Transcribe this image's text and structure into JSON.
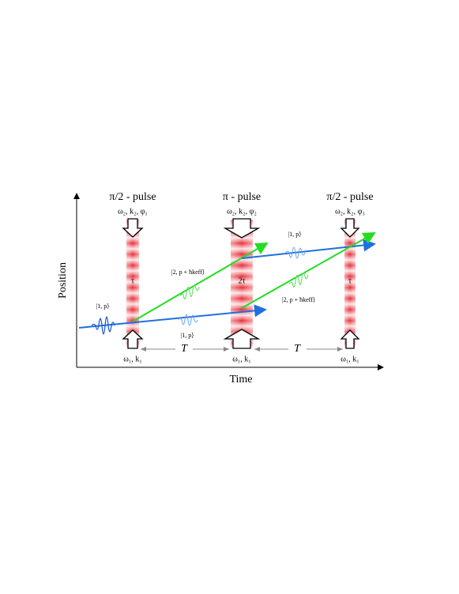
{
  "axes": {
    "x_label": "Time",
    "y_label": "Position"
  },
  "pulses": [
    {
      "title": "π/2 - pulse",
      "top_label": "ω₂, k₂, φ₁",
      "bottom_label": "ω₁, k₁",
      "duration": "τ"
    },
    {
      "title": "π - pulse",
      "top_label": "ω₂, k₂, φ₂",
      "bottom_label": "ω₁, k₁",
      "duration": "2τ"
    },
    {
      "title": "π/2 - pulse",
      "top_label": "ω₂, k₂, φ₃",
      "bottom_label": "ω₁, k₁",
      "duration": "τ"
    }
  ],
  "spacings": [
    "T",
    "T"
  ],
  "states": [
    "|1, p⟩",
    "|2, p + ħkeff⟩",
    "|1, p⟩",
    "|1, p⟩",
    "|2, p + ħkeff⟩"
  ]
}
